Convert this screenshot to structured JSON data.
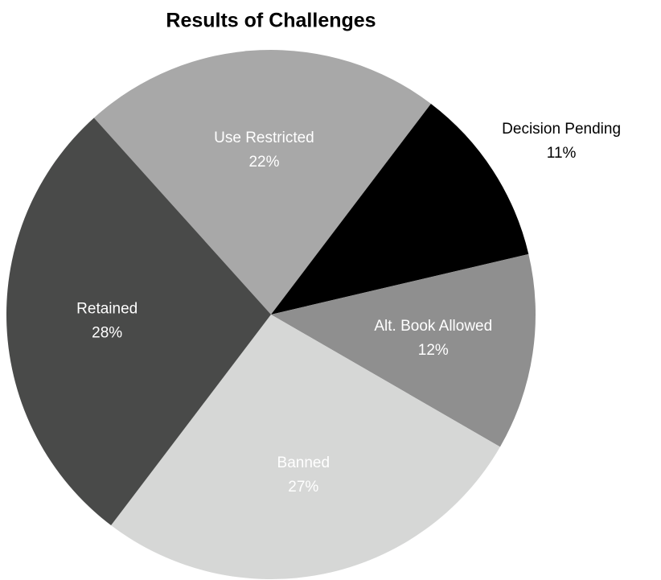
{
  "chart_data": {
    "type": "pie",
    "title": "Results of Challenges",
    "categories": [
      "Use Restricted",
      "Decision Pending",
      "Alt. Book Allowed",
      "Banned",
      "Retained"
    ],
    "values": [
      22,
      11,
      12,
      27,
      28
    ],
    "value_labels": [
      "22%",
      "11%",
      "12%",
      "27%",
      "28%"
    ],
    "colors": [
      "#a8a8a8",
      "#000000",
      "#8f8f8f",
      "#d6d7d6",
      "#494a49"
    ]
  }
}
